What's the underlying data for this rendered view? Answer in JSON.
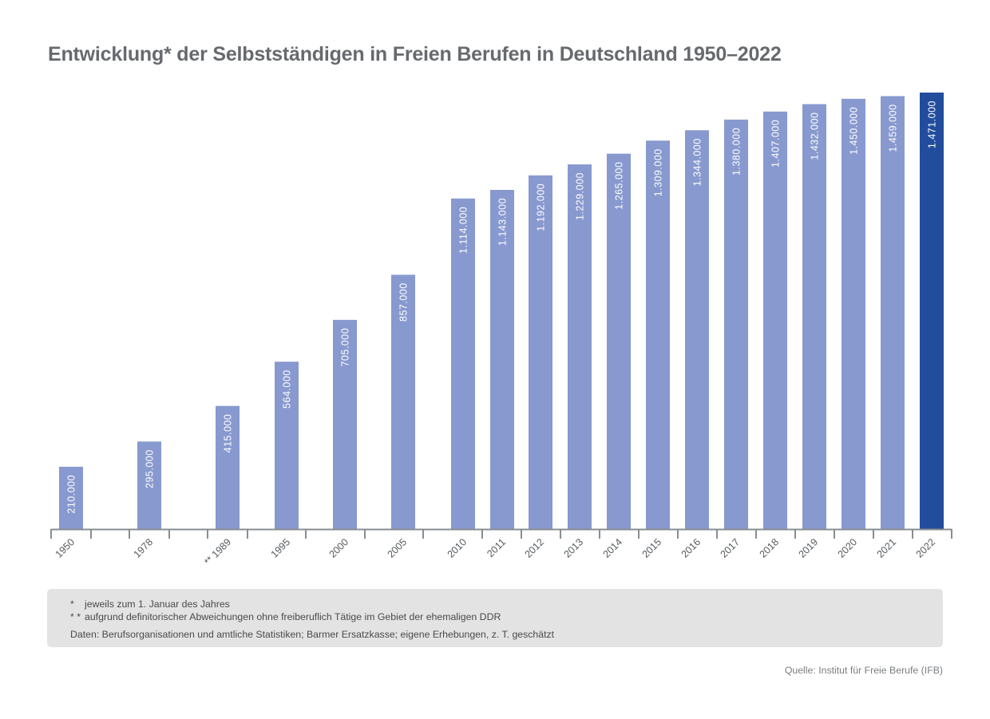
{
  "title": "Entwicklung* der Selbstständigen in Freien Berufen in Deutschland 1950–2022",
  "colors": {
    "bar": "#8899cf",
    "bar_highlight": "#224d9d",
    "axis": "#8a8d90"
  },
  "chart_data": {
    "type": "bar",
    "title": "Entwicklung* der Selbstständigen in Freien Berufen in Deutschland 1950–2022",
    "xlabel": "",
    "ylabel": "",
    "ylim": [
      0,
      1471000
    ],
    "grid": false,
    "categories": [
      "1950",
      "1978",
      "** 1989",
      "1995",
      "2000",
      "2005",
      "2010",
      "2011",
      "2012",
      "2013",
      "2014",
      "2015",
      "2016",
      "2017",
      "2018",
      "2019",
      "2020",
      "2021",
      "2022"
    ],
    "values": [
      210000,
      295000,
      415000,
      564000,
      705000,
      857000,
      1114000,
      1143000,
      1192000,
      1229000,
      1265000,
      1309000,
      1344000,
      1380000,
      1407000,
      1432000,
      1450000,
      1459000,
      1471000
    ],
    "value_labels": [
      "210.000",
      "295.000",
      "415.000",
      "564.000",
      "705.000",
      "857.000",
      "1.114.000",
      "1.143.000",
      "1.192.000",
      "1.229.000",
      "1.265.000",
      "1.309.000",
      "1.344.000",
      "1.380.000",
      "1.407.000",
      "1.432.000",
      "1.450.000",
      "1.459.000",
      "1.471.000"
    ],
    "highlight": "2022"
  },
  "notes": [
    {
      "mark": "*",
      "text": "jeweils zum 1. Januar des Jahres"
    },
    {
      "mark": "* *",
      "text": "aufgrund definitorischer Abweichungen ohne freiberuflich Tätige im Gebiet der ehemaligen DDR"
    }
  ],
  "data_source": "Daten: Berufsorganisationen und amtliche Statistiken; Barmer Ersatzkasse; eigene Erhebungen, z. T. geschätzt",
  "source": "Quelle: Institut für Freie Berufe (IFB)"
}
